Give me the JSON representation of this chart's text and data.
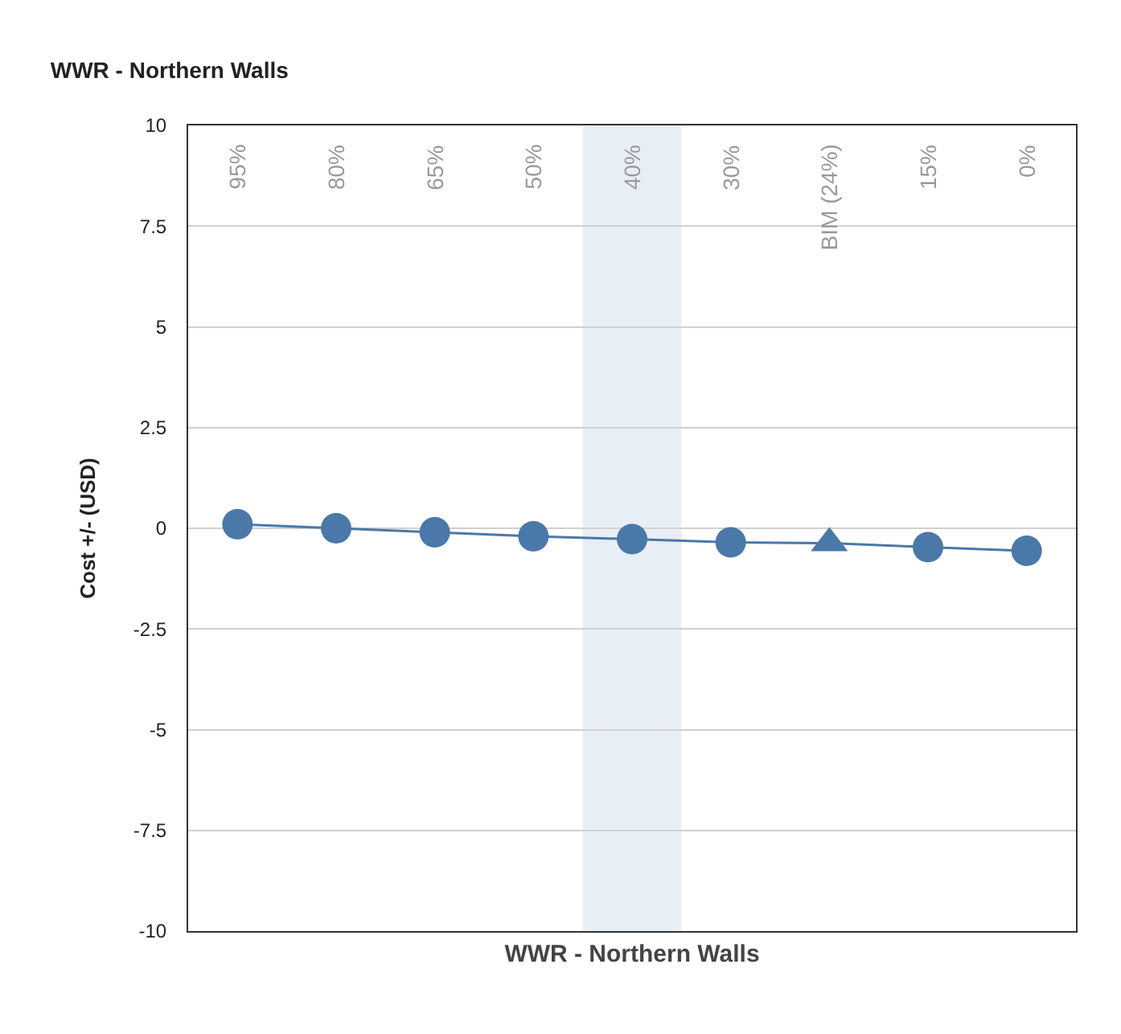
{
  "chart_data": {
    "type": "line",
    "title": "WWR - Northern Walls",
    "xlabel": "WWR - Northern Walls",
    "ylabel": "Cost +/- (USD)",
    "categories": [
      "95%",
      "80%",
      "65%",
      "50%",
      "40%",
      "30%",
      "BIM (24%)",
      "15%",
      "0%"
    ],
    "series": [
      {
        "color": "#4a78a8",
        "marker": "none",
        "values": [
          0.1,
          0,
          -0.1,
          -0.2,
          -0.27,
          -0.35,
          -0.37,
          -0.47,
          -0.56
        ]
      },
      {
        "type": "scatter",
        "color": "#4a78a8",
        "marker": "circle",
        "values": [
          0.1,
          0,
          -0.1,
          -0.2,
          -0.27,
          -0.35,
          null,
          -0.47,
          -0.56
        ]
      },
      {
        "type": "scatter",
        "color": "#4a78a8",
        "marker": "triangle",
        "values": [
          null,
          null,
          null,
          null,
          null,
          null,
          -0.37,
          null,
          null
        ]
      }
    ],
    "ylim": [
      -10,
      10
    ],
    "yticks": [
      -10,
      -7.5,
      -5,
      -2.5,
      0,
      2.5,
      5,
      7.5,
      10
    ],
    "bands": [
      {
        "axis": "x",
        "from": "40%",
        "to": "40%",
        "color": "#e8eef6"
      }
    ],
    "grid": "y"
  }
}
